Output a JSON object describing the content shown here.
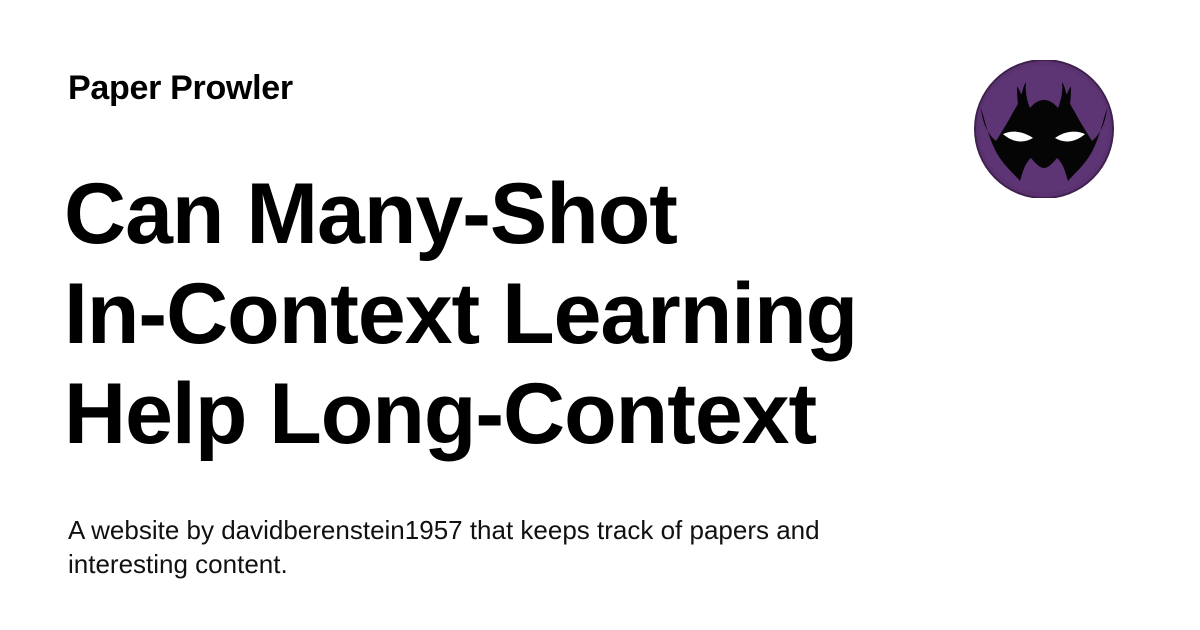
{
  "site": {
    "name": "Paper Prowler",
    "logo_icon": "masked-face-logo-icon",
    "logo_color": "#5b3270"
  },
  "headline": {
    "lines": [
      "Can Many-Shot",
      "In-Context Learning",
      "Help Long-Context"
    ]
  },
  "description": "A website by davidberenstein1957 that keeps track of papers and interesting content."
}
